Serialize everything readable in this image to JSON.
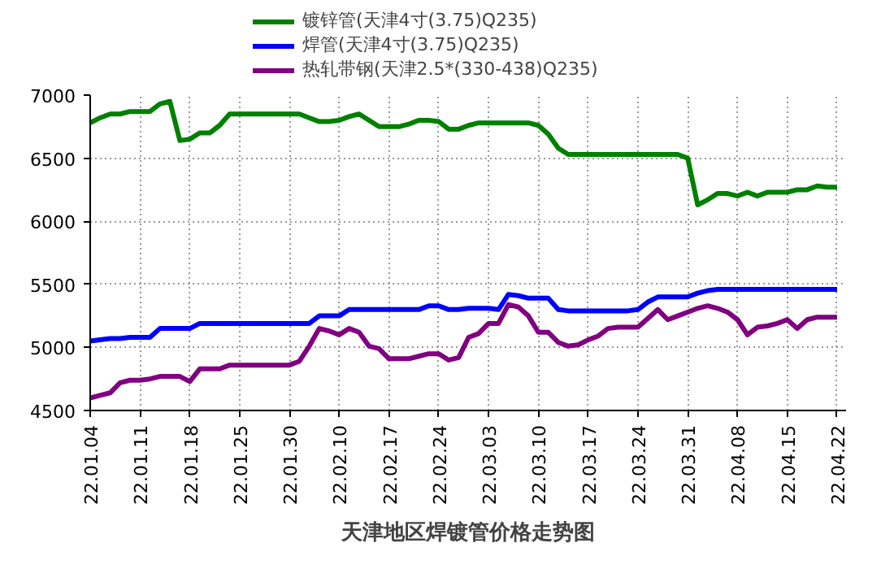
{
  "chart_data": {
    "type": "line",
    "title": "天津地区焊镀管价格走势图",
    "categories": [
      "22.01.04",
      null,
      null,
      null,
      null,
      "22.01.11",
      null,
      null,
      null,
      null,
      "22.01.18",
      null,
      null,
      null,
      null,
      "22.01.25",
      null,
      null,
      null,
      null,
      "22.01.30",
      null,
      null,
      null,
      null,
      "22.02.10",
      null,
      null,
      null,
      null,
      "22.02.17",
      null,
      null,
      null,
      null,
      "22.02.24",
      null,
      null,
      null,
      null,
      "22.03.03",
      null,
      null,
      null,
      null,
      "22.03.10",
      null,
      null,
      null,
      null,
      "22.03.17",
      null,
      null,
      null,
      null,
      "22.03.24",
      null,
      null,
      null,
      null,
      "22.03.31",
      null,
      null,
      null,
      null,
      "22.04.08",
      null,
      null,
      null,
      null,
      "22.04.15",
      null,
      null,
      null,
      null,
      "22.04.22"
    ],
    "series": [
      {
        "name": "镀锌管(天津4寸(3.75)Q235)",
        "color": "#008000",
        "values": [
          6780,
          6820,
          6850,
          6850,
          6870,
          6870,
          6870,
          6930,
          6950,
          6640,
          6650,
          6700,
          6700,
          6760,
          6850,
          6850,
          6850,
          6850,
          6850,
          6850,
          6850,
          6850,
          6820,
          6790,
          6790,
          6800,
          6830,
          6850,
          6800,
          6750,
          6750,
          6750,
          6770,
          6800,
          6800,
          6790,
          6730,
          6730,
          6760,
          6780,
          6780,
          6780,
          6780,
          6780,
          6780,
          6760,
          6690,
          6580,
          6530,
          6530,
          6530,
          6530,
          6530,
          6530,
          6530,
          6530,
          6530,
          6530,
          6530,
          6530,
          6500,
          6130,
          6170,
          6220,
          6220,
          6200,
          6230,
          6200,
          6230,
          6230,
          6230,
          6250,
          6250,
          6280,
          6270,
          6270
        ]
      },
      {
        "name": "焊管(天津4寸(3.75)Q235)",
        "color": "#0000ff",
        "values": [
          5050,
          5060,
          5070,
          5070,
          5080,
          5080,
          5080,
          5150,
          5150,
          5150,
          5150,
          5190,
          5190,
          5190,
          5190,
          5190,
          5190,
          5190,
          5190,
          5190,
          5190,
          5190,
          5190,
          5250,
          5250,
          5250,
          5300,
          5300,
          5300,
          5300,
          5300,
          5300,
          5300,
          5300,
          5330,
          5330,
          5300,
          5300,
          5310,
          5310,
          5310,
          5300,
          5420,
          5410,
          5390,
          5390,
          5390,
          5300,
          5290,
          5290,
          5290,
          5290,
          5290,
          5290,
          5290,
          5300,
          5360,
          5400,
          5400,
          5400,
          5400,
          5430,
          5450,
          5460,
          5460,
          5460,
          5460,
          5460,
          5460,
          5460,
          5460,
          5460,
          5460,
          5460,
          5460,
          5460
        ]
      },
      {
        "name": "热轧带钢(天津2.5*(330-438)Q235)",
        "color": "#800080",
        "values": [
          4600,
          4620,
          4640,
          4720,
          4740,
          4740,
          4750,
          4770,
          4770,
          4770,
          4730,
          4830,
          4830,
          4830,
          4860,
          4860,
          4860,
          4860,
          4860,
          4860,
          4860,
          4890,
          5010,
          5150,
          5130,
          5100,
          5150,
          5120,
          5010,
          4990,
          4910,
          4910,
          4910,
          4930,
          4950,
          4950,
          4900,
          4920,
          5080,
          5110,
          5190,
          5190,
          5340,
          5320,
          5250,
          5120,
          5120,
          5040,
          5010,
          5020,
          5060,
          5090,
          5150,
          5160,
          5160,
          5160,
          5230,
          5300,
          5220,
          5250,
          5280,
          5310,
          5330,
          5310,
          5280,
          5220,
          5100,
          5160,
          5170,
          5190,
          5220,
          5150,
          5220,
          5240,
          5240,
          5240
        ]
      }
    ],
    "ylim": [
      4500,
      7000
    ],
    "yticks": [
      4500,
      5000,
      5500,
      6000,
      6500,
      7000
    ],
    "grid": true,
    "legend": "top",
    "marker": "none",
    "line_style": "solid"
  }
}
